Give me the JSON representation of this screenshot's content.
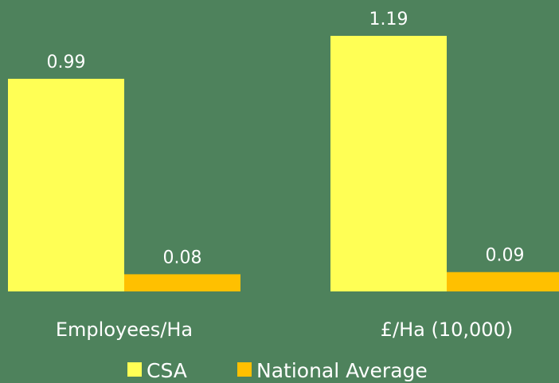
{
  "chart_data": {
    "type": "bar",
    "categories": [
      "Employees/Ha",
      "£/Ha (10,000)"
    ],
    "series": [
      {
        "name": "CSA",
        "values": [
          0.99,
          1.19
        ],
        "labels": [
          "0.99",
          "1.19"
        ],
        "color": "#ffff55"
      },
      {
        "name": "National Average",
        "values": [
          0.08,
          0.09
        ],
        "labels": [
          "0.08",
          "0.09"
        ],
        "color": "#ffc000"
      }
    ],
    "title": "",
    "xlabel": "",
    "ylabel": "",
    "ylim": [
      0,
      1.19
    ],
    "grid": false,
    "legend": "bottom",
    "background": "#4e825c"
  }
}
